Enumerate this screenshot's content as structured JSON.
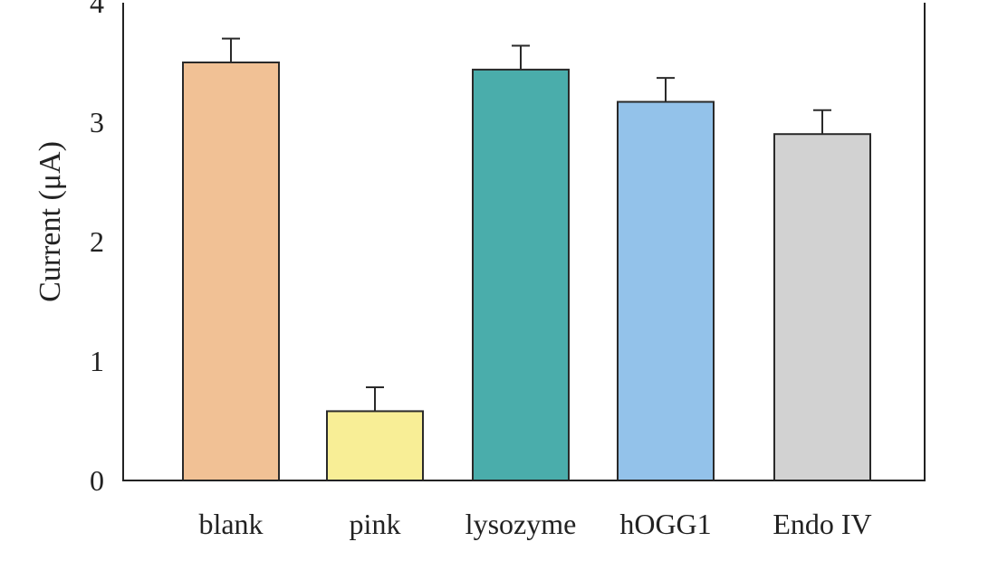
{
  "chart_data": {
    "type": "bar",
    "categories": [
      "blank",
      "pink",
      "lysozyme",
      "hOGG1",
      "Endo IV"
    ],
    "values": [
      3.5,
      0.58,
      3.44,
      3.17,
      2.9
    ],
    "errors": [
      0.2,
      0.2,
      0.2,
      0.2,
      0.2
    ],
    "colors": [
      "#f1c195",
      "#f8ee96",
      "#4aadab",
      "#93c2ea",
      "#d2d2d2"
    ],
    "xlabel": "",
    "ylabel": "Current (μA)",
    "ylim": [
      0,
      4
    ],
    "yticks": [
      0,
      1,
      2,
      3,
      4
    ],
    "grid": false,
    "legend": "none"
  }
}
